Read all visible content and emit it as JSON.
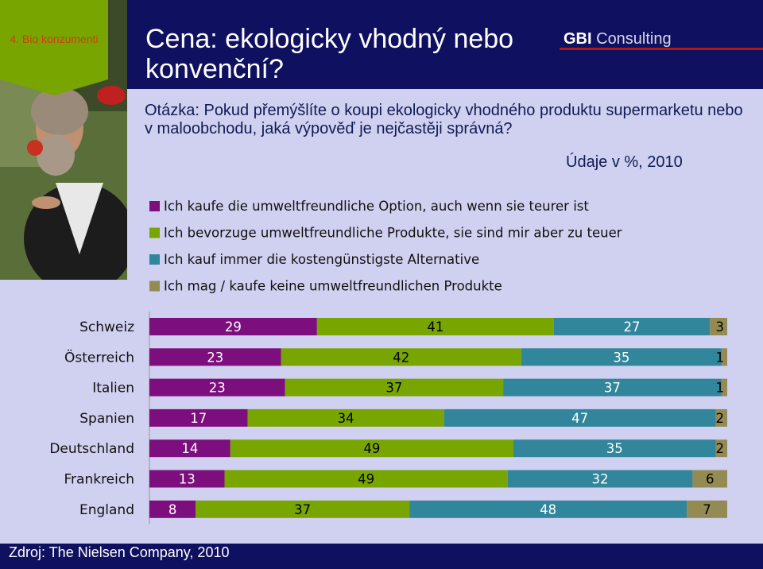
{
  "badge": {
    "label": "4. Bio konzumenti"
  },
  "title": "Cena: ekologicky vhodný nebo konvenční?",
  "brand": {
    "strong": "GBI",
    "rest": " Consulting"
  },
  "question": "Otázka: Pokud přemýšlíte o koupi ekologicky vhodného produktu supermarketu nebo v maloobchodu, jaká výpověď je nejčastěji správná?",
  "unit_note": "Údaje v %, 2010",
  "source": "Zdroj: The Nielsen Company, 2010",
  "colors": {
    "s1": "#7d0e7e",
    "s2": "#78a500",
    "s3": "#31869b",
    "s4": "#948a54",
    "header": "#0f1060",
    "background": "#d0d0f0"
  },
  "chart_data": {
    "type": "bar",
    "orientation": "horizontal",
    "stacked": true,
    "percent_stacked": true,
    "categories": [
      "Schweiz",
      "Österreich",
      "Italien",
      "Spanien",
      "Deutschland",
      "Frankreich",
      "England"
    ],
    "series": [
      {
        "name": "Ich kaufe die umweltfreundliche Option, auch wenn sie teurer ist",
        "values": [
          29,
          23,
          23,
          17,
          14,
          13,
          8
        ]
      },
      {
        "name": "Ich bevorzuge umweltfreundliche Produkte, sie sind mir aber zu teuer",
        "values": [
          41,
          42,
          37,
          34,
          49,
          49,
          37
        ]
      },
      {
        "name": "Ich kauf immer die kostengünstigste Alternative",
        "values": [
          27,
          35,
          37,
          47,
          35,
          32,
          48
        ]
      },
      {
        "name": "Ich mag / kaufe keine umweltfreundlichen Produkte",
        "values": [
          3,
          1,
          1,
          2,
          2,
          6,
          7
        ]
      }
    ],
    "legend_position": "top",
    "grid": false
  }
}
